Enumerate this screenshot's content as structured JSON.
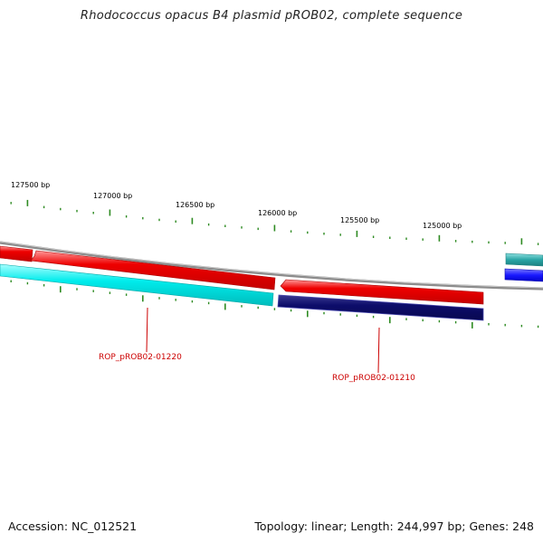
{
  "title": "Rhodococcus opacus B4 plasmid pROB02, complete sequence",
  "accession": "Accession: NC_012521",
  "topology": "Topology: linear; Length: 244,997 bp; Genes: 248",
  "scale_labels": [
    "127500 bp",
    "127000 bp",
    "126500 bp",
    "126000 bp",
    "125500 bp",
    "125000 bp"
  ],
  "gene_labels": [
    "ROP_pROB02-01220",
    "ROP_pROB02-01210"
  ],
  "colors": {
    "backbone": "#8c8c8c",
    "tick": "#2e8b22",
    "forward_feature": "#ee0000",
    "reverse_feature_1": "#00e5e5",
    "reverse_feature_2": "#0d0d6b",
    "edge_teal": "#2aa6a6",
    "edge_blue": "#1a1aff",
    "label": "#cc0000"
  }
}
